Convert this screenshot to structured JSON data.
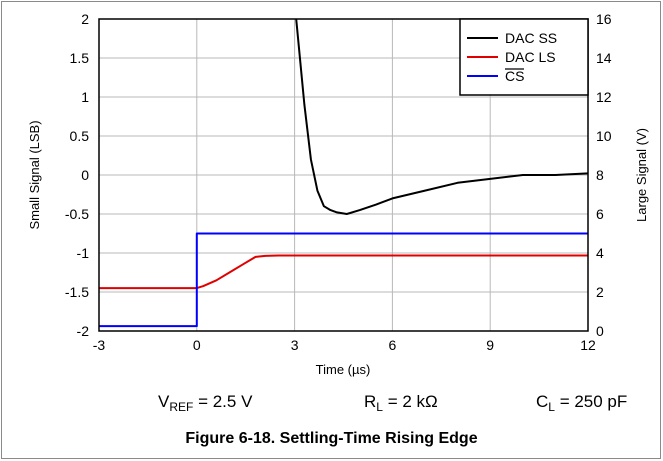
{
  "chart_data": {
    "type": "line",
    "xlabel": "Time (µs)",
    "ylabel_left": "Small Signal (LSB)",
    "ylabel_right": "Large Signal (V)",
    "xlim": [
      -3,
      12
    ],
    "ylim_left": [
      -2,
      2
    ],
    "ylim_right": [
      0,
      16
    ],
    "x_ticks": [
      "-3",
      "0",
      "3",
      "6",
      "9",
      "12"
    ],
    "y_left_ticks": [
      "-2",
      "-1.5",
      "-1",
      "-0.5",
      "0",
      "0.5",
      "1",
      "1.5",
      "2"
    ],
    "y_right_ticks": [
      "0",
      "2",
      "4",
      "6",
      "8",
      "10",
      "12",
      "14",
      "16"
    ],
    "grid": true,
    "legend_position": "top-right",
    "series": [
      {
        "name": "DAC SS",
        "axis": "left",
        "color": "#000000",
        "x": [
          3.05,
          3.3,
          3.5,
          3.7,
          3.9,
          4.1,
          4.3,
          4.6,
          5.0,
          5.5,
          6.0,
          7.0,
          8.0,
          9.0,
          10.0,
          11.0,
          12.0
        ],
        "y": [
          2.0,
          0.9,
          0.2,
          -0.2,
          -0.4,
          -0.45,
          -0.48,
          -0.5,
          -0.45,
          -0.38,
          -0.3,
          -0.2,
          -0.1,
          -0.05,
          0.0,
          0.0,
          0.02
        ]
      },
      {
        "name": "DAC LS",
        "axis": "right",
        "color": "#e00000",
        "x": [
          -3.0,
          -2.0,
          -1.0,
          0.0,
          0.2,
          0.6,
          1.0,
          1.4,
          1.8,
          2.1,
          2.5,
          3.0,
          4.0,
          6.0,
          8.0,
          10.0,
          12.0
        ],
        "y": [
          2.2,
          2.2,
          2.2,
          2.2,
          2.3,
          2.6,
          3.0,
          3.4,
          3.8,
          3.85,
          3.87,
          3.87,
          3.87,
          3.87,
          3.87,
          3.87,
          3.87
        ]
      },
      {
        "name": "CS",
        "axis": "right",
        "color": "#0000ff",
        "x": [
          -3.0,
          0.0,
          0.0,
          12.0
        ],
        "y": [
          0.25,
          0.25,
          5.0,
          5.0
        ]
      }
    ]
  },
  "conditions": {
    "vref_main": "V",
    "vref_sub": "REF",
    "vref_value": " = 2.5 V",
    "rl_main": "R",
    "rl_sub": "L",
    "rl_value": " = 2 kΩ",
    "cl_main": "C",
    "cl_sub": "L",
    "cl_value": " = 250 pF"
  },
  "caption": "Figure 6-18. Settling-Time Rising Edge"
}
